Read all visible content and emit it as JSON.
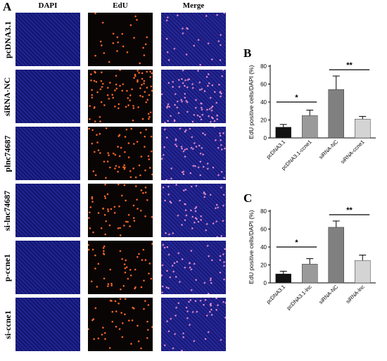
{
  "figure": {
    "panel_a_letter": "A",
    "columns": [
      "DAPI",
      "EdU",
      "Merge"
    ],
    "rows": [
      "pcDNA3.1",
      "siRNA-NC",
      "plnc74687",
      "si-lnc74687",
      "p-ccne1",
      "si-ccne1"
    ],
    "edu_intensity": [
      0.05,
      0.9,
      0.55,
      0.45,
      0.35,
      0.3
    ],
    "colors": {
      "dapi": "#15197e",
      "edu_dot": "#ff6a2a",
      "merge_dot": "#ff9ad6"
    }
  },
  "chart_data": [
    {
      "type": "bar",
      "panel": "B",
      "categories": [
        "pcDNA3.1",
        "pcDNA3.1-ccne1",
        "siRNA-NC",
        "siRNA-ccne1"
      ],
      "values": [
        12,
        25,
        54,
        21
      ],
      "errors": [
        3,
        6,
        15,
        3
      ],
      "bar_colors": [
        "#111111",
        "#9a9a9a",
        "#808080",
        "#d4d4d4"
      ],
      "ylabel": "EdU positive cells/DAPI (%)",
      "yticks": [
        0,
        20,
        40,
        60,
        80
      ],
      "ylim": [
        0,
        80
      ],
      "significance": [
        {
          "from": 0,
          "to": 1,
          "y": 40,
          "label": "*"
        },
        {
          "from": 2,
          "to": 3,
          "y": 76,
          "label": "**"
        }
      ]
    },
    {
      "type": "bar",
      "panel": "C",
      "categories": [
        "pcDNA3.1",
        "pcDNA3.1-lnc",
        "siRNA-NC",
        "siRNA-lnc"
      ],
      "values": [
        10,
        21,
        62,
        25
      ],
      "errors": [
        3,
        6,
        7,
        6
      ],
      "bar_colors": [
        "#111111",
        "#9a9a9a",
        "#808080",
        "#d4d4d4"
      ],
      "ylabel": "EdU positive cells/DAPI (%)",
      "yticks": [
        0,
        20,
        40,
        60,
        80
      ],
      "ylim": [
        0,
        80
      ],
      "significance": [
        {
          "from": 0,
          "to": 1,
          "y": 40,
          "label": "*"
        },
        {
          "from": 2,
          "to": 3,
          "y": 76,
          "label": "**"
        }
      ]
    }
  ]
}
